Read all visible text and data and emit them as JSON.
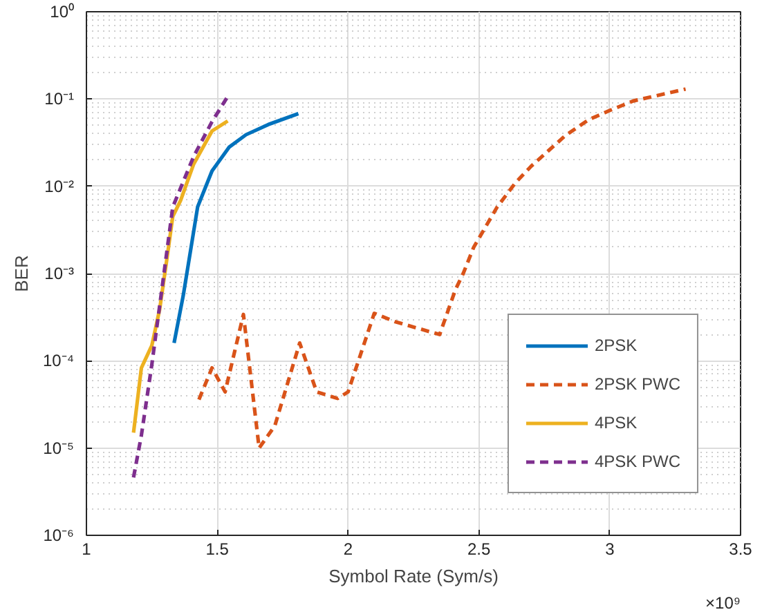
{
  "chart_data": {
    "type": "line",
    "xlabel": "Symbol Rate (Sym/s)",
    "ylabel": "BER",
    "log": "y",
    "grid": true,
    "legend": "bottom right",
    "xlim": [
      1,
      3.5
    ],
    "xticks": [
      1,
      1.5,
      2,
      2.5,
      3,
      3.5
    ],
    "ylim": [
      1e-06,
      1
    ],
    "yticks": [
      {
        "value": 1e-06,
        "label": "10⁻⁶"
      },
      {
        "value": 1e-05,
        "label": "10⁻⁵"
      },
      {
        "value": 0.0001,
        "label": "10⁻⁴"
      },
      {
        "value": 0.001,
        "label": "10⁻³"
      },
      {
        "value": 0.01,
        "label": "10⁻²"
      },
      {
        "value": 0.1,
        "label": "10⁻¹"
      },
      {
        "value": 1,
        "label": "10⁰"
      }
    ],
    "annotations": [
      "×10⁹"
    ],
    "series": [
      {
        "name": "2PSK",
        "color": "#0072bd",
        "line_style": "solid",
        "x": [
          1.335,
          1.37,
          1.425,
          1.48,
          1.545,
          1.61,
          1.695,
          1.81
        ],
        "values": [
          0.00016,
          0.00056,
          0.0058,
          0.015,
          0.028,
          0.039,
          0.051,
          0.068
        ]
      },
      {
        "name": "2PSK PWC",
        "color": "#d95319",
        "line_style": "dashed",
        "x": [
          1.43,
          1.48,
          1.53,
          1.6,
          1.66,
          1.72,
          1.815,
          1.88,
          1.96,
          2.0,
          2.1,
          2.18,
          2.35,
          2.41,
          2.44,
          2.48,
          2.57,
          2.64,
          2.7,
          2.83,
          2.92,
          3.0,
          3.09,
          3.29
        ],
        "values": [
          3.6e-05,
          8.3e-05,
          4.4e-05,
          0.00034,
          1e-05,
          1.8e-05,
          0.00016,
          4.4e-05,
          3.7e-05,
          4.4e-05,
          0.00035,
          0.00028,
          0.0002,
          0.00065,
          0.001,
          0.002,
          0.0058,
          0.011,
          0.017,
          0.038,
          0.058,
          0.074,
          0.095,
          0.13
        ]
      },
      {
        "name": "4PSK",
        "color": "#edb120",
        "line_style": "solid",
        "x": [
          1.18,
          1.21,
          1.25,
          1.28,
          1.305,
          1.33,
          1.36,
          1.41,
          1.48,
          1.54
        ],
        "values": [
          1.5e-05,
          8.3e-05,
          0.00015,
          0.00039,
          0.0013,
          0.0045,
          0.0069,
          0.018,
          0.043,
          0.056
        ]
      },
      {
        "name": "4PSK PWC",
        "color": "#7e2f8e",
        "line_style": "dashed",
        "x": [
          1.18,
          1.21,
          1.25,
          1.29,
          1.33,
          1.41,
          1.48,
          1.54
        ],
        "values": [
          4.6e-06,
          1.4e-05,
          9.1e-05,
          0.00072,
          0.0058,
          0.022,
          0.055,
          0.107
        ]
      }
    ]
  }
}
